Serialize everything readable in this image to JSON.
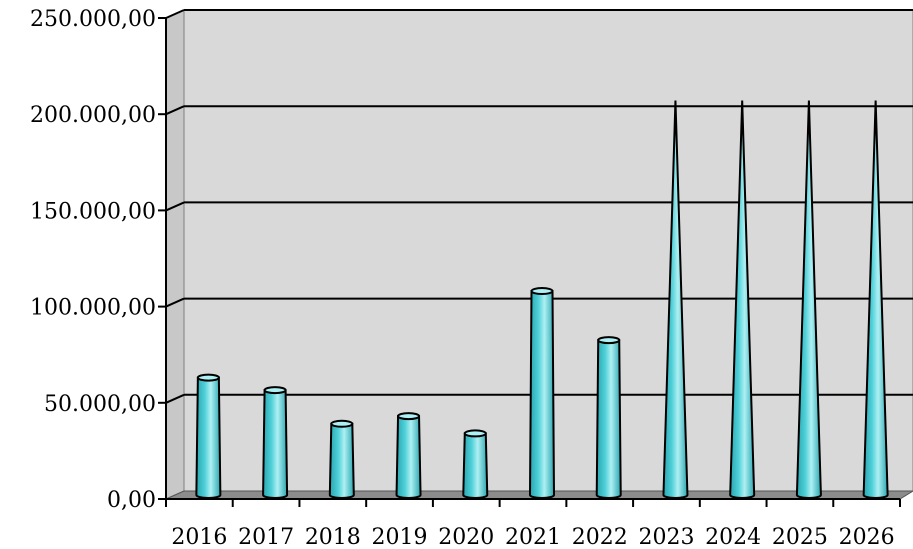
{
  "chart_data": {
    "type": "bar",
    "bar_shape": "cylinder-and-cone",
    "categories": [
      "2016",
      "2017",
      "2018",
      "2019",
      "2020",
      "2021",
      "2022",
      "2023",
      "2024",
      "2025",
      "2026"
    ],
    "values": [
      61000,
      54500,
      37000,
      41000,
      32000,
      106000,
      80500,
      205000,
      205000,
      205000,
      205000
    ],
    "ylim": [
      0,
      250000
    ],
    "yticks": [
      0,
      50000,
      100000,
      150000,
      200000,
      250000
    ],
    "ytick_labels": [
      "0,00",
      "50.000,00",
      "100.000,00",
      "150.000,00",
      "200.000,00",
      "250.000,00"
    ],
    "grid": true,
    "legend": "none",
    "colors": {
      "bar": "#4fd0d8",
      "bar_dark": "#2aa6b0",
      "bar_light": "#aef0f3",
      "plot_bg": "#d9d9d9",
      "wall_side": "#c8c8c8",
      "floor": "#8c8c8c",
      "gridline": "#000000"
    }
  }
}
